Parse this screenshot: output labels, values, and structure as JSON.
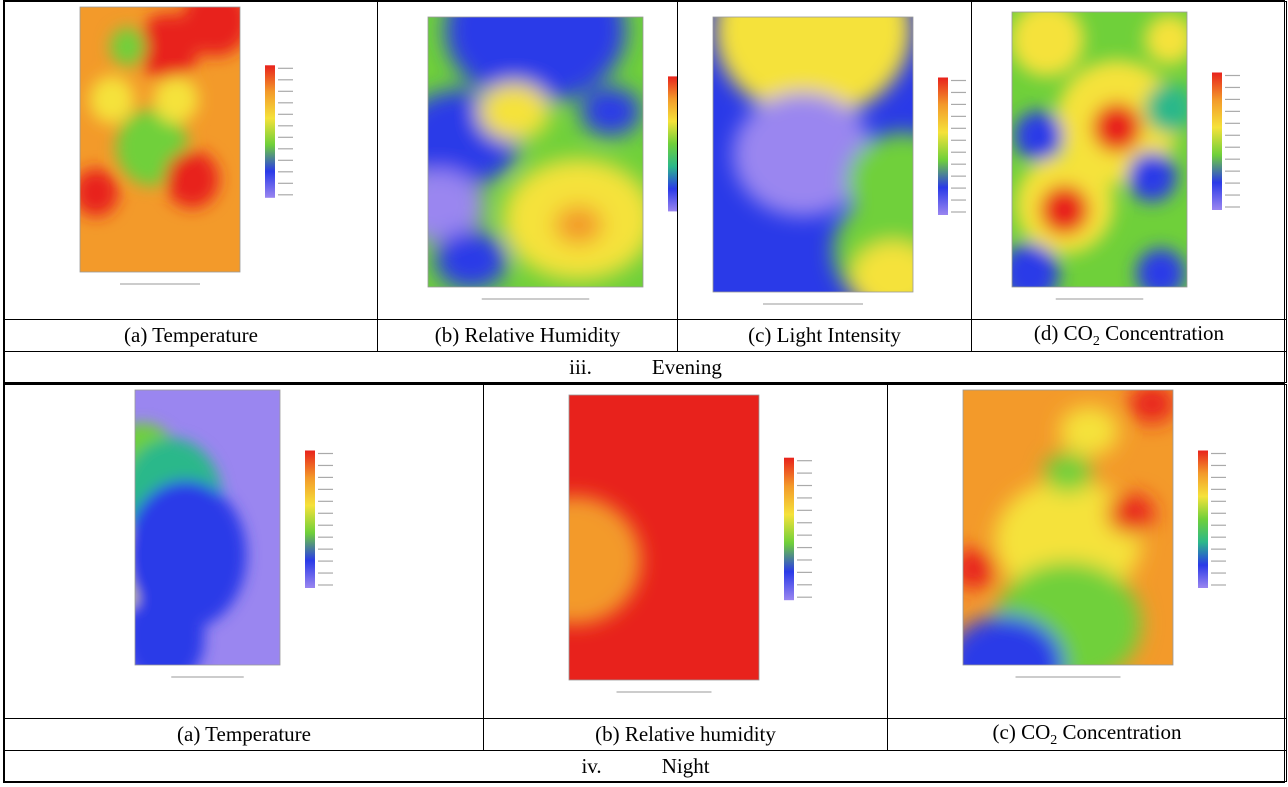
{
  "table": {
    "rows": [
      {
        "captions": [
          {
            "prefix": "(a) Temperature"
          },
          {
            "prefix": "(b) Relative Humidity"
          },
          {
            "prefix": "(c) Light Intensity"
          },
          {
            "prefix": "(d) CO",
            "sub": "2",
            "suffix": " Concentration"
          }
        ],
        "section": {
          "numeral": "iii.",
          "label": "Evening"
        }
      },
      {
        "captions": [
          {
            "prefix": "(a)  Temperature"
          },
          {
            "prefix": "(b)  Relative humidity"
          },
          {
            "prefix": "(c)  CO",
            "sub": "2",
            "suffix": " Concentration"
          }
        ],
        "section": {
          "numeral": "iv.",
          "label": "Night"
        }
      }
    ]
  }
}
